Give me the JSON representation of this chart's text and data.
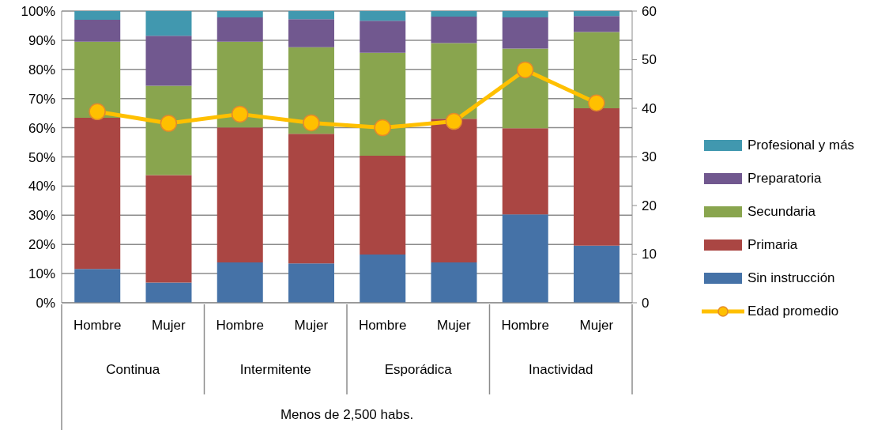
{
  "chart_data": {
    "type": "bar",
    "stacked": true,
    "categories": [
      "Hombre",
      "Mujer",
      "Hombre",
      "Mujer",
      "Hombre",
      "Mujer",
      "Hombre",
      "Mujer"
    ],
    "annotations": [
      "Continua",
      "Intermitente",
      "Esporádica",
      "Inactividad",
      "Menos de 2,500 habs."
    ],
    "series": [
      {
        "name": "Sin instrucción",
        "color": "#4572a7",
        "values": [
          11.6,
          6.9,
          13.8,
          13.5,
          16.5,
          13.8,
          30.3,
          19.6
        ]
      },
      {
        "name": "Primaria",
        "color": "#aa4643",
        "values": [
          51.8,
          36.9,
          46.3,
          44.4,
          33.9,
          49.3,
          29.5,
          47.1
        ]
      },
      {
        "name": "Secundaria",
        "color": "#89a54e",
        "values": [
          26.1,
          30.6,
          29.4,
          29.7,
          35.3,
          25.9,
          27.3,
          26.1
        ]
      },
      {
        "name": "Preparatoria",
        "color": "#71588f",
        "values": [
          7.5,
          17.1,
          8.3,
          9.6,
          11.0,
          9.1,
          10.7,
          5.5
        ]
      },
      {
        "name": "Profesional y más",
        "color": "#4198af",
        "values": [
          3.0,
          8.5,
          2.2,
          2.8,
          3.3,
          1.9,
          2.2,
          1.7
        ]
      },
      {
        "name": "Edad promedio",
        "type": "line",
        "axis": "y2",
        "color": "#ffc000",
        "values": [
          39.3,
          36.9,
          38.8,
          37.0,
          36.0,
          37.3,
          47.9,
          41.1
        ]
      }
    ],
    "ylim": [
      0,
      100
    ],
    "yticks": [
      {
        "value": 0,
        "label": "0%"
      },
      {
        "value": 10,
        "label": "10%"
      },
      {
        "value": 20,
        "label": "20%"
      },
      {
        "value": 30,
        "label": "30%"
      },
      {
        "value": 40,
        "label": "40%"
      },
      {
        "value": 50,
        "label": "50%"
      },
      {
        "value": 60,
        "label": "60%"
      },
      {
        "value": 70,
        "label": "70%"
      },
      {
        "value": 80,
        "label": "80%"
      },
      {
        "value": 90,
        "label": "90%"
      },
      {
        "value": 100,
        "label": "100%"
      }
    ],
    "y2lim": [
      0,
      60
    ],
    "y2ticks": [
      0,
      10,
      20,
      30,
      40,
      50,
      60
    ],
    "grid": "y",
    "legend": "right",
    "marker": "circle",
    "line_style": "solid"
  }
}
